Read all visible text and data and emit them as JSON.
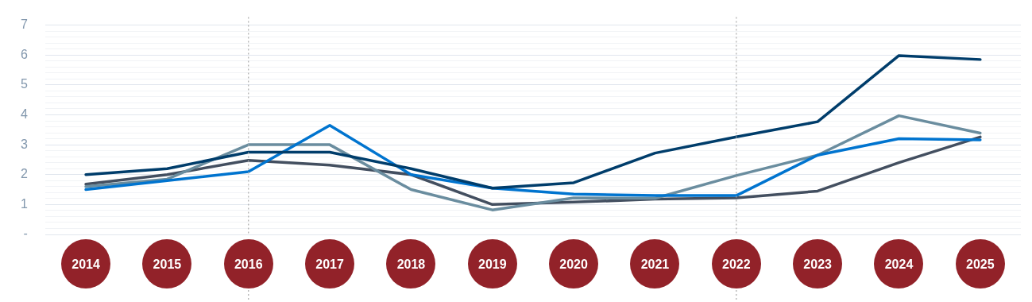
{
  "chart_data": {
    "type": "line",
    "categories": [
      "2014",
      "2015",
      "2016",
      "2017",
      "2018",
      "2019",
      "2020",
      "2021",
      "2022",
      "2023",
      "2024",
      "2025"
    ],
    "series": [
      {
        "color": "#003d6b",
        "values": [
          2.0,
          2.2,
          2.75,
          2.75,
          2.2,
          1.55,
          1.73,
          2.72,
          3.26,
          3.77,
          5.98,
          5.85
        ]
      },
      {
        "color": "#0074cf",
        "values": [
          1.5,
          1.8,
          2.1,
          3.65,
          2.0,
          1.55,
          1.35,
          1.3,
          1.3,
          2.65,
          3.2,
          3.16
        ]
      },
      {
        "color": "#6a8d9f",
        "values": [
          1.6,
          1.85,
          3.0,
          3.0,
          1.5,
          0.82,
          1.22,
          1.21,
          1.97,
          2.65,
          3.97,
          3.39
        ]
      },
      {
        "color": "#434f60",
        "values": [
          1.68,
          2.0,
          2.48,
          2.32,
          2.0,
          1.0,
          1.08,
          1.18,
          1.22,
          1.45,
          2.4,
          3.26
        ]
      }
    ],
    "ylim": [
      0,
      7
    ],
    "yticks": [
      {
        "value": 0,
        "label": "-"
      },
      {
        "value": 0.2,
        "label": null
      },
      {
        "value": 0.4,
        "label": null
      },
      {
        "value": 0.6,
        "label": null
      },
      {
        "value": 0.8,
        "label": null
      },
      1,
      {
        "value": 1.2,
        "label": null
      },
      {
        "value": 1.4,
        "label": null
      },
      {
        "value": 1.6,
        "label": null
      },
      {
        "value": 1.8,
        "label": null
      },
      2,
      {
        "value": 2.2,
        "label": null
      },
      {
        "value": 2.4,
        "label": null
      },
      {
        "value": 2.6,
        "label": null
      },
      {
        "value": 2.8,
        "label": null
      },
      3,
      {
        "value": 3.2,
        "label": null
      },
      {
        "value": 3.4,
        "label": null
      },
      {
        "value": 3.6,
        "label": null
      },
      {
        "value": 3.8,
        "label": null
      },
      4,
      {
        "value": 4.2,
        "label": null
      },
      {
        "value": 4.4,
        "label": null
      },
      {
        "value": 4.6,
        "label": null
      },
      {
        "value": 4.8,
        "label": null
      },
      5,
      {
        "value": 5.2,
        "label": null
      },
      {
        "value": 5.4,
        "label": null
      },
      {
        "value": 5.6,
        "label": null
      },
      {
        "value": 5.8,
        "label": null
      },
      6,
      {
        "value": 6.2,
        "label": null
      },
      {
        "value": 6.4,
        "label": null
      },
      {
        "value": 6.6,
        "label": null
      },
      {
        "value": 6.8,
        "label": null
      },
      7
    ],
    "ref_lines": [
      {
        "axis": "x",
        "value": "2016",
        "color": "#aaaaaa",
        "line_style": "dotted"
      },
      {
        "axis": "x",
        "value": "2022",
        "color": "#aaaaaa",
        "line_style": "dotted"
      }
    ],
    "grid": "y",
    "legend": false,
    "marker": "none",
    "line_style": "solid"
  }
}
